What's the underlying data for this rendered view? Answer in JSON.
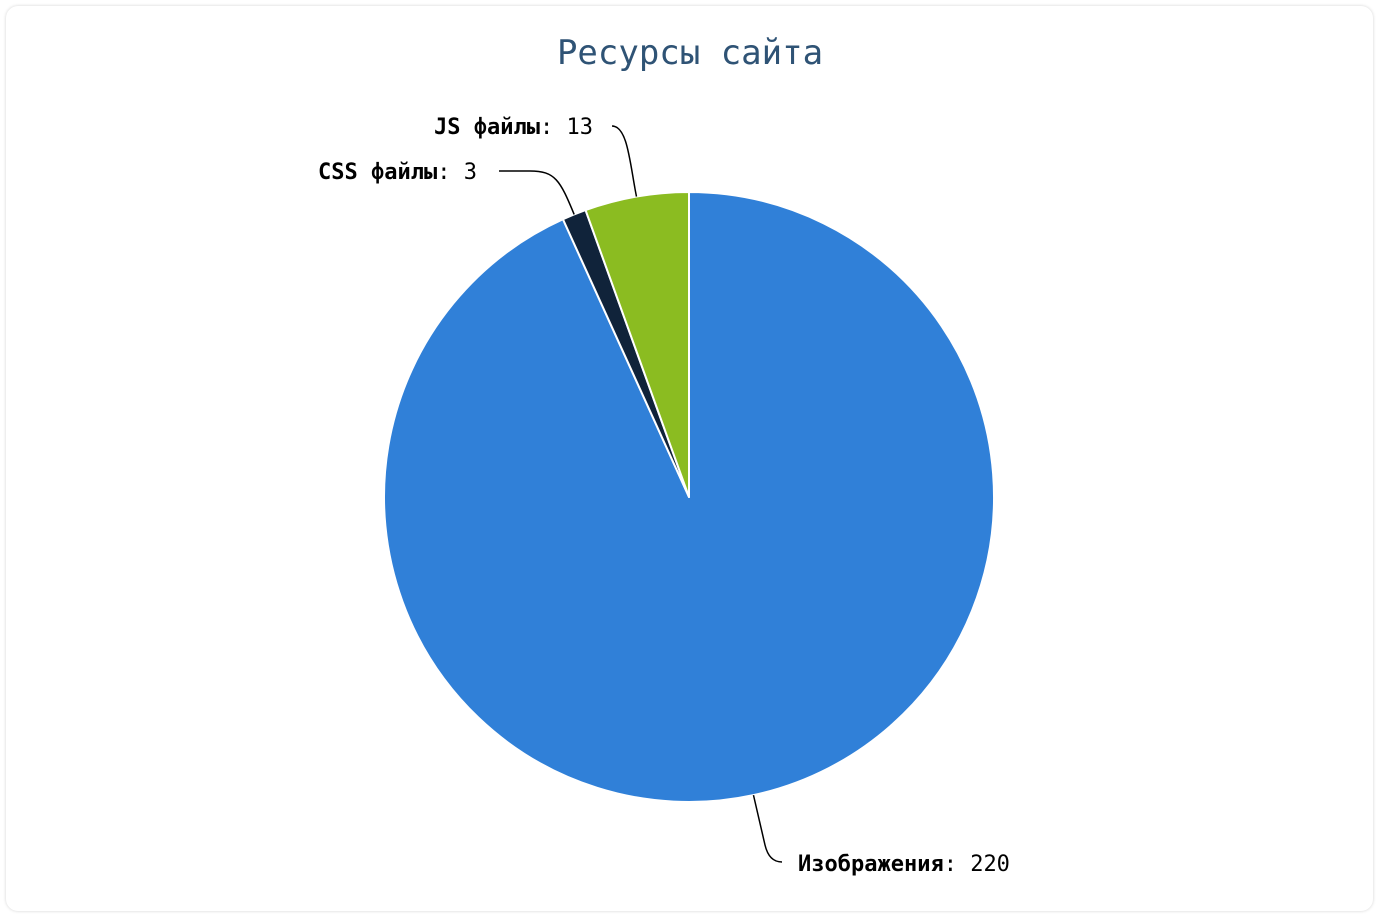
{
  "chart_data": {
    "type": "pie",
    "title": "Ресурсы сайта",
    "slices": [
      {
        "label": "Изображения",
        "value": 220,
        "color": "#3080d8"
      },
      {
        "label": "CSS файлы",
        "value": 3,
        "color": "#10233a"
      },
      {
        "label": "JS файлы",
        "value": 13,
        "color": "#8bbc21"
      }
    ],
    "separator": ":"
  }
}
